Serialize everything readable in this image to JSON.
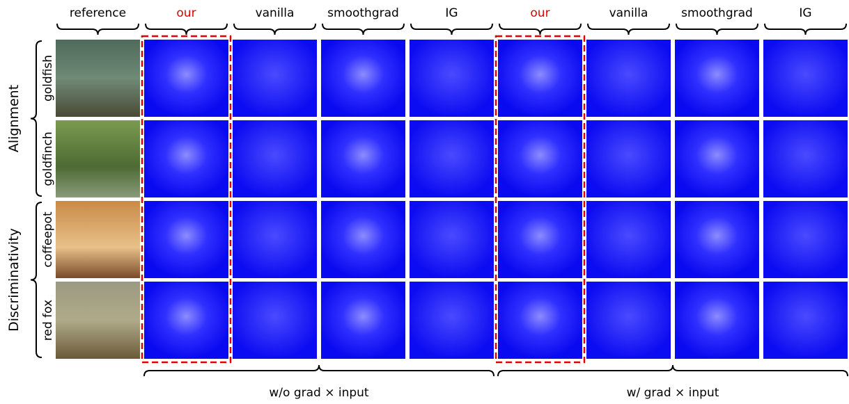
{
  "columns": [
    "reference",
    "our",
    "vanilla",
    "smoothgrad",
    "IG",
    "our",
    "vanilla",
    "smoothgrad",
    "IG"
  ],
  "groups": [
    {
      "label": "Alignment",
      "rows": [
        "goldfish",
        "goldfinch"
      ]
    },
    {
      "label": "Discriminativity",
      "rows": [
        "coffeepot",
        "red fox"
      ]
    }
  ],
  "bottom_labels": [
    "w/o grad × input",
    "w/ grad × input"
  ]
}
